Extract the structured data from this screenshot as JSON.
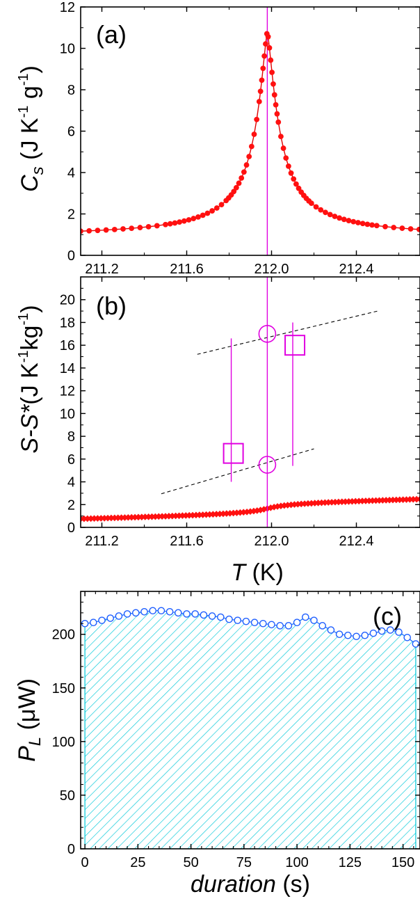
{
  "chart_data": [
    {
      "panel": "(a)",
      "type": "line",
      "ylabel": {
        "main": "C",
        "sub": "s",
        "unit_prefix": " (J K",
        "sup1": "-1",
        "unit_mid": " g",
        "sup2": "-1",
        "unit_end": ")"
      },
      "xlim": [
        211.1,
        212.7
      ],
      "ylim": [
        0,
        12
      ],
      "xticks": [
        "211.2",
        "211.6",
        "212.0",
        "212.4"
      ],
      "xtick_values": [
        211.2,
        211.6,
        212.0,
        212.4
      ],
      "yticks": [
        "0",
        "2",
        "4",
        "6",
        "8",
        "10",
        "12"
      ],
      "ytick_values": [
        0,
        2,
        4,
        6,
        8,
        10,
        12
      ],
      "peak": {
        "tc": 211.98,
        "cmax": 10.8,
        "gamma": 0.062,
        "base": 0.9,
        "amp": 0.27
      },
      "vline_x": 211.98,
      "colors": {
        "series": "#e00000",
        "marker": "#ff1010",
        "vline": "#e000e0"
      }
    },
    {
      "panel": "(b)",
      "type": "line",
      "ylabel": {
        "main": "S-S*",
        "unit_prefix": "(J K",
        "sup1": "-1",
        "unit_mid": "kg",
        "sup2": "-1",
        "unit_end": ")"
      },
      "xlabel": {
        "main": "T",
        "unit": " (K)"
      },
      "xlim": [
        211.1,
        212.7
      ],
      "ylim": [
        0,
        22
      ],
      "xticks": [
        "211.2",
        "211.6",
        "212.0",
        "212.4"
      ],
      "xtick_values": [
        211.2,
        211.6,
        212.0,
        212.4
      ],
      "yticks": [
        "0",
        "2",
        "4",
        "6",
        "8",
        "10",
        "12",
        "14",
        "16",
        "18",
        "20"
      ],
      "ytick_values": [
        0,
        2,
        4,
        6,
        8,
        10,
        12,
        14,
        16,
        18,
        20
      ],
      "vline_x": 211.98,
      "low_bound_line": {
        "x": [
          211.48,
          212.2
        ],
        "y": [
          2.95,
          6.9
        ]
      },
      "high_bound_line": {
        "x": [
          211.65,
          212.5
        ],
        "y": [
          15.2,
          19.0
        ]
      },
      "squares": [
        {
          "x": 211.82,
          "y": 6.5
        },
        {
          "x": 212.11,
          "y": 16.0
        }
      ],
      "circles": [
        {
          "x": 211.98,
          "y": 5.5
        },
        {
          "x": 211.98,
          "y": 17.0
        }
      ],
      "vlines_short": [
        {
          "x": 211.81,
          "y": [
            4.0,
            16.6
          ]
        },
        {
          "x": 212.1,
          "y": [
            5.4,
            18.0
          ]
        }
      ],
      "colors": {
        "series": "#e00000",
        "marker": "#ff1010",
        "accent": "#e000e0"
      }
    },
    {
      "panel": "(c)",
      "type": "area",
      "ylabel": {
        "main": "P",
        "sub": "L",
        "unit": " (μW)"
      },
      "xlabel": {
        "main": "duration",
        "unit": " (s)"
      },
      "xlim": [
        -2,
        158
      ],
      "ylim": [
        0,
        240
      ],
      "xticks": [
        "0",
        "25",
        "50",
        "75",
        "100",
        "125",
        "150"
      ],
      "xtick_values": [
        0,
        25,
        50,
        75,
        100,
        125,
        150
      ],
      "yticks": [
        "0",
        "50",
        "100",
        "150",
        "200"
      ],
      "ytick_values": [
        0,
        50,
        100,
        150,
        200
      ],
      "x": [
        0,
        4,
        8,
        12,
        16,
        20,
        24,
        28,
        32,
        36,
        40,
        44,
        48,
        52,
        56,
        60,
        64,
        68,
        72,
        76,
        80,
        84,
        88,
        92,
        96,
        100,
        104,
        108,
        112,
        116,
        120,
        124,
        128,
        132,
        136,
        140,
        144,
        148,
        152,
        156
      ],
      "y": [
        210,
        211,
        213,
        215,
        217,
        219,
        220,
        221,
        222,
        222,
        221,
        220,
        219,
        219,
        218,
        217,
        216,
        214,
        213,
        212,
        211,
        210,
        209,
        208,
        208,
        211,
        216,
        213,
        208,
        204,
        200,
        199,
        198,
        199,
        201,
        203,
        204,
        202,
        197,
        191
      ],
      "colors": {
        "marker_edge": "#1f5fff",
        "hatch": "#00c8d8"
      }
    }
  ]
}
